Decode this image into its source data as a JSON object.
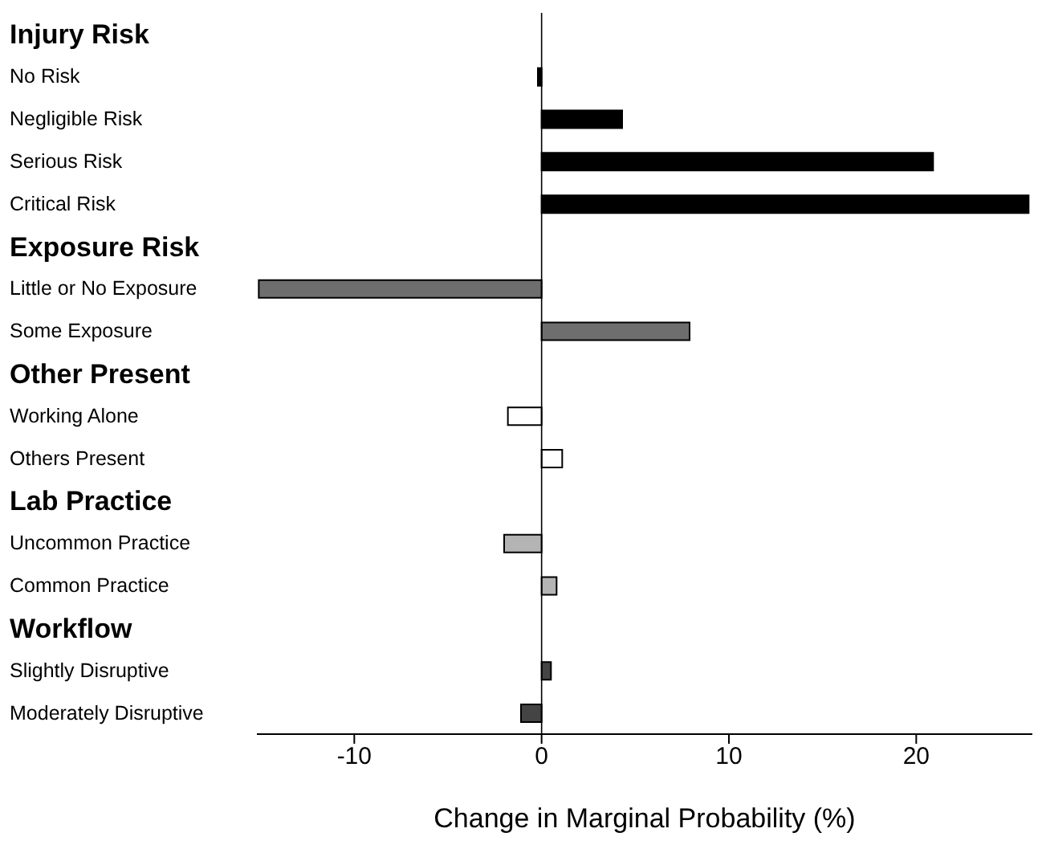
{
  "chart_data": {
    "type": "bar",
    "orientation": "horizontal",
    "xlabel": "Change in Marginal Probability (%)",
    "categories": [
      "Injury Risk",
      "No Risk",
      "Negligible Risk",
      "Serious Risk",
      "Critical Risk",
      "Exposure Risk",
      "Little or No Exposure",
      "Some Exposure",
      "Other Present",
      "Working Alone",
      "Others Present",
      "Lab Practice",
      "Uncommon Practice",
      "Common Practice",
      "Workflow",
      "Slightly Disruptive",
      "Moderately Disruptive"
    ],
    "values": [
      null,
      -0.2,
      4.3,
      20.9,
      26,
      null,
      -15.1,
      7.9,
      null,
      -1.8,
      1.1,
      null,
      -2,
      0.8,
      null,
      0.5,
      -1.1
    ],
    "colors": [
      null,
      "#000000",
      "#000000",
      "#000000",
      "#000000",
      null,
      "#6e6e6e",
      "#6e6e6e",
      null,
      "#ffffff",
      "#ffffff",
      null,
      "#b4b4b4",
      "#b4b4b4",
      null,
      "#444444",
      "#444444"
    ],
    "xlim": [
      -15.2,
      26.2
    ],
    "xticks": [
      -10,
      0,
      10,
      20
    ]
  }
}
